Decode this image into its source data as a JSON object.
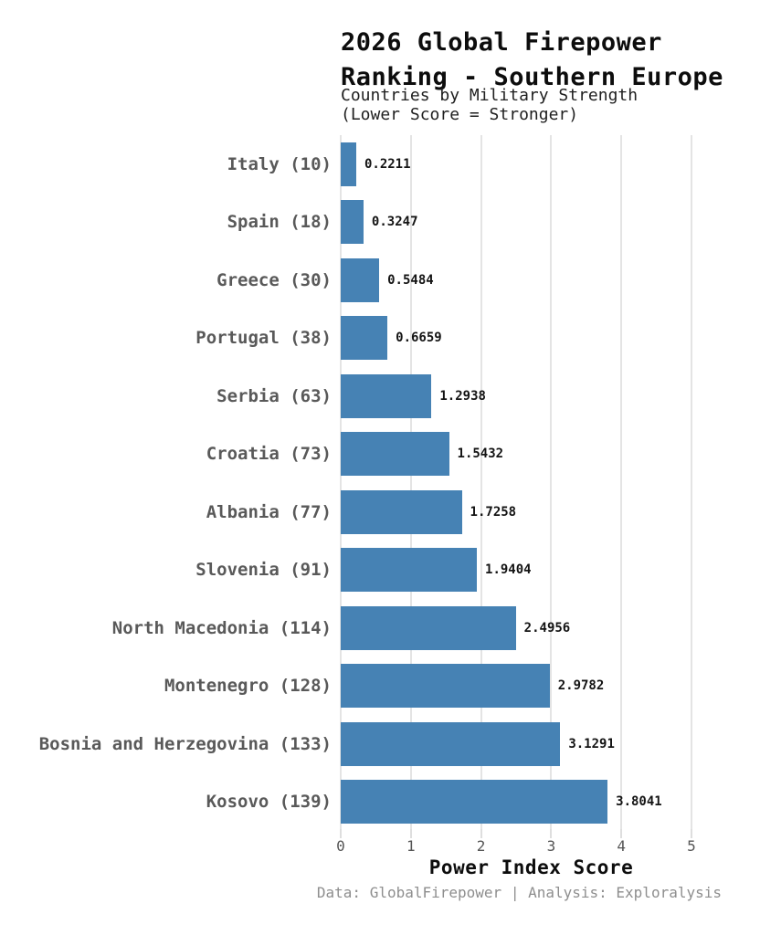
{
  "chart_data": {
    "type": "bar",
    "orientation": "horizontal",
    "title_lines": [
      "2026 Global Firepower",
      "Ranking - Southern Europe"
    ],
    "subtitle_lines": [
      "Countries by Military Strength",
      "(Lower Score = Stronger)"
    ],
    "categories": [
      "Italy (10)",
      "Spain (18)",
      "Greece (30)",
      "Portugal (38)",
      "Serbia (63)",
      "Croatia (73)",
      "Albania (77)",
      "Slovenia (91)",
      "North Macedonia (114)",
      "Montenegro (128)",
      "Bosnia and Herzegovina (133)",
      "Kosovo (139)"
    ],
    "values": [
      0.2211,
      0.3247,
      0.5484,
      0.6659,
      1.2938,
      1.5432,
      1.7258,
      1.9404,
      2.4956,
      2.9782,
      3.1291,
      3.8041
    ],
    "value_labels": [
      "0.2211",
      "0.3247",
      "0.5484",
      "0.6659",
      "1.2938",
      "1.5432",
      "1.7258",
      "1.9404",
      "2.4956",
      "2.9782",
      "3.1291",
      "3.8041"
    ],
    "xlabel": "Power Index Score",
    "x_ticks": [
      0,
      1,
      2,
      3,
      4,
      5
    ],
    "xlim": [
      0,
      5
    ],
    "grid": true,
    "legend": "none",
    "bar_color": "#4682B4",
    "footer": "Data: GlobalFirepower | Analysis: Exploralysis"
  }
}
